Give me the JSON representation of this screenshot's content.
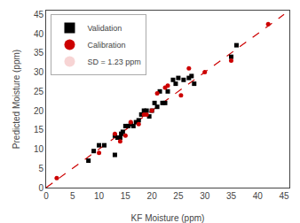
{
  "chart_data": {
    "type": "scatter",
    "xlabel": "KF Moisture (ppm)",
    "ylabel": "Predicted Moisture (ppm)",
    "series": [
      {
        "type": "line",
        "line_style": "dashed",
        "color": "#cc0000",
        "x": [
          0,
          45
        ],
        "values": [
          0,
          45
        ]
      },
      {
        "name": "Validation",
        "marker": "square",
        "color": "#000000",
        "x": [
          8,
          9,
          10,
          11,
          13,
          13.5,
          14,
          14.2,
          14.5,
          15,
          15.5,
          16,
          16.5,
          17,
          17.5,
          18,
          18.5,
          19,
          19.5,
          20,
          20.5,
          21,
          21.5,
          22,
          22.5,
          23,
          24,
          24.5,
          25,
          26,
          27,
          27.5,
          28,
          13,
          35,
          36
        ],
        "values": [
          7,
          9.5,
          11,
          11,
          13.5,
          13,
          13,
          14,
          14.5,
          16,
          16,
          16.5,
          16,
          17,
          17.5,
          19,
          20,
          20,
          18.5,
          20,
          22,
          21,
          25,
          22,
          22,
          25,
          28,
          27,
          28.5,
          28,
          28.5,
          29,
          27,
          8.5,
          34,
          37
        ]
      },
      {
        "name": "Calibration",
        "marker": "circle",
        "color": "#cc0000",
        "x": [
          2,
          10,
          13,
          14,
          15,
          16,
          17.5,
          18.5,
          19,
          20,
          21,
          22.5,
          23,
          25.5,
          27,
          30,
          35,
          42
        ],
        "values": [
          2.5,
          9,
          14,
          12,
          13.5,
          17,
          16.5,
          19,
          19,
          20,
          24.5,
          26,
          26.5,
          24,
          31,
          30,
          33,
          42.5
        ]
      }
    ],
    "annotations": [
      "SD = 1.23 ppm"
    ],
    "xlim": [
      0,
      46
    ],
    "ylim": [
      0,
      46
    ],
    "xticks": [
      0,
      5,
      10,
      15,
      20,
      25,
      30,
      35,
      40,
      45
    ],
    "yticks": [
      0,
      5,
      10,
      15,
      20,
      25,
      30,
      35,
      40,
      45
    ],
    "legend": "upper left",
    "grid": false
  }
}
